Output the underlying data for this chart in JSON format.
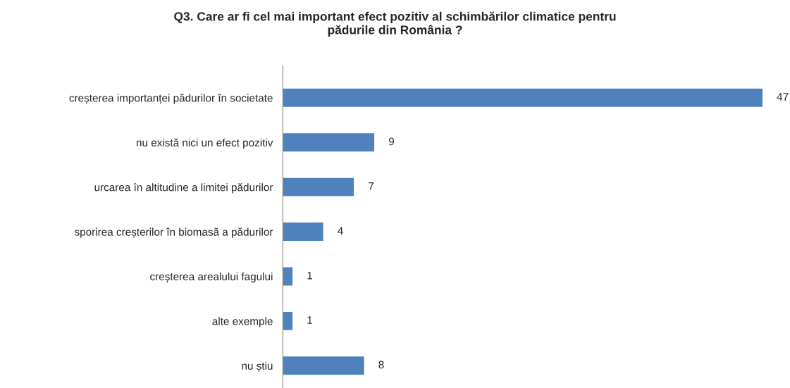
{
  "chart_data": {
    "type": "bar",
    "orientation": "horizontal",
    "title": "Q3. Care ar fi cel mai important efect pozitiv al schimbărilor climatice pentru\npădurile din România ?",
    "categories": [
      "creșterea importanței pădurilor în societate",
      "nu există nici un efect pozitiv",
      "urcarea în altitudine a limitei pădurilor",
      "sporirea creșterilor în biomasă a pădurilor",
      "creșterea arealului fagului",
      "alte exemple",
      "nu știu"
    ],
    "values": [
      47,
      9,
      7,
      4,
      1,
      1,
      8
    ],
    "color": "#4f81bd",
    "data_labels": true,
    "grid": false,
    "legend": false
  }
}
